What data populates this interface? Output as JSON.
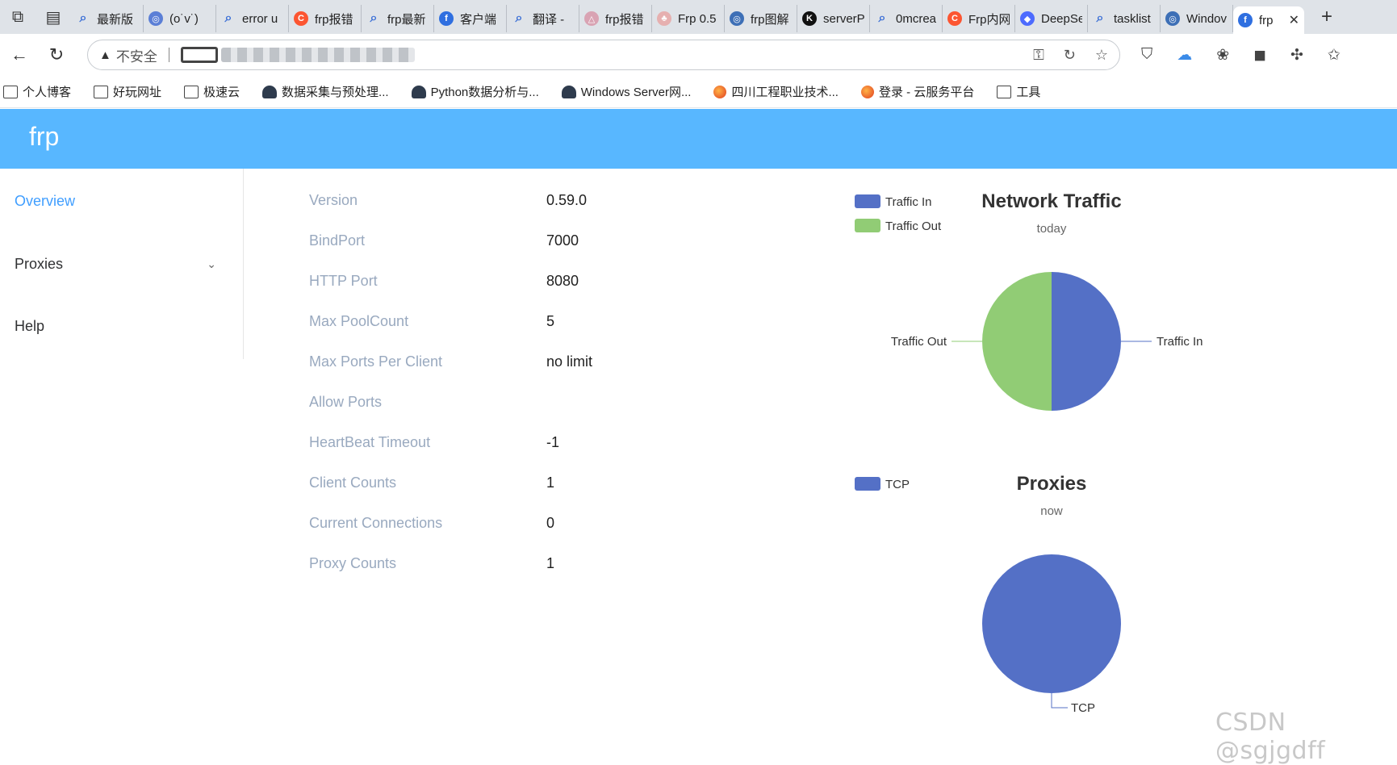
{
  "browser": {
    "tabs": [
      {
        "label": "最新版",
        "icon": "search-icon",
        "color": "#dfe3e8",
        "glyph": "⌕"
      },
      {
        "label": "(o˙v˙)",
        "icon": "site-icon",
        "color": "#5b7fd6",
        "glyph": "◎"
      },
      {
        "label": "error u",
        "icon": "search-icon",
        "color": "#dfe3e8",
        "glyph": "⌕"
      },
      {
        "label": "frp报错",
        "icon": "csdn-icon",
        "color": "#fc5531",
        "glyph": "C"
      },
      {
        "label": "frp最新",
        "icon": "search-icon",
        "color": "#dfe3e8",
        "glyph": "⌕"
      },
      {
        "label": "客户端",
        "icon": "frp-icon",
        "color": "#2f6fe0",
        "glyph": "f"
      },
      {
        "label": "翻译 -",
        "icon": "search-icon",
        "color": "#dfe3e8",
        "glyph": "⌕"
      },
      {
        "label": "frp报错",
        "icon": "site-icon",
        "color": "#d9a3b3",
        "glyph": "△"
      },
      {
        "label": "Frp 0.5",
        "icon": "site-icon",
        "color": "#e6b0b0",
        "glyph": "♣"
      },
      {
        "label": "frp图解",
        "icon": "site-icon",
        "color": "#3d6fb6",
        "glyph": "◎"
      },
      {
        "label": "serverP",
        "icon": "site-icon",
        "color": "#111111",
        "glyph": "K"
      },
      {
        "label": "0mcrea",
        "icon": "search-icon",
        "color": "#dfe3e8",
        "glyph": "⌕"
      },
      {
        "label": "Frp内网",
        "icon": "csdn-icon",
        "color": "#fc5531",
        "glyph": "C"
      },
      {
        "label": "DeepSe",
        "icon": "deepseek-icon",
        "color": "#4d6bfe",
        "glyph": "◆"
      },
      {
        "label": "tasklist",
        "icon": "search-icon",
        "color": "#dfe3e8",
        "glyph": "⌕"
      },
      {
        "label": "Windov",
        "icon": "site-icon",
        "color": "#3d6fb6",
        "glyph": "◎"
      }
    ],
    "active_tab": {
      "label": "frp",
      "icon": "frp-icon",
      "color": "#2f6fe0",
      "glyph": "f",
      "close": "✕"
    },
    "new_tab": "+",
    "address": {
      "insecure_label": "不安全",
      "warn_glyph": "▲"
    },
    "bookmarks": [
      {
        "label": "个人博客",
        "icon": "folder-icon"
      },
      {
        "label": "好玩网址",
        "icon": "folder-icon"
      },
      {
        "label": "极速云",
        "icon": "folder-icon"
      },
      {
        "label": "数据采集与预处理...",
        "icon": "cloud-icon"
      },
      {
        "label": "Python数据分析与...",
        "icon": "cloud-icon"
      },
      {
        "label": "Windows Server网...",
        "icon": "cloud-icon"
      },
      {
        "label": "四川工程职业技术...",
        "icon": "orb-icon"
      },
      {
        "label": "登录 - 云服务平台",
        "icon": "orb-icon"
      },
      {
        "label": "工具",
        "icon": "folder-icon"
      }
    ]
  },
  "app": {
    "title": "frp",
    "menu": {
      "overview": "Overview",
      "proxies": "Proxies",
      "help": "Help",
      "chevron": "⌄"
    },
    "details": [
      {
        "key": "Version",
        "value": "0.59.0"
      },
      {
        "key": "BindPort",
        "value": "7000"
      },
      {
        "key": "HTTP Port",
        "value": "8080"
      },
      {
        "key": "Max PoolCount",
        "value": "5"
      },
      {
        "key": "Max Ports Per Client",
        "value": "no limit"
      },
      {
        "key": "Allow Ports",
        "value": ""
      },
      {
        "key": "HeartBeat Timeout",
        "value": "-1"
      },
      {
        "key": "Client Counts",
        "value": "1"
      },
      {
        "key": "Current Connections",
        "value": "0"
      },
      {
        "key": "Proxy Counts",
        "value": "1"
      }
    ]
  },
  "watermark": "CSDN @sgjgdff",
  "chart_data": [
    {
      "type": "pie",
      "title": "Network Traffic",
      "subtitle": "today",
      "legend": [
        "Traffic In",
        "Traffic Out"
      ],
      "legend_placement": "top-left",
      "slices": [
        {
          "name": "Traffic In",
          "value": 50,
          "color": "#5470c6"
        },
        {
          "name": "Traffic Out",
          "value": 50,
          "color": "#91cc75"
        }
      ]
    },
    {
      "type": "pie",
      "title": "Proxies",
      "subtitle": "now",
      "legend": [
        "TCP"
      ],
      "legend_placement": "top-left",
      "slices": [
        {
          "name": "TCP",
          "value": 1,
          "color": "#5470c6"
        }
      ]
    }
  ]
}
